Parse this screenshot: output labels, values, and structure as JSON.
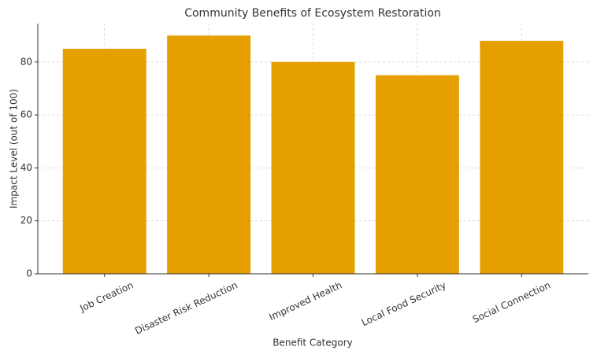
{
  "chart_data": {
    "type": "bar",
    "title": "Community Benefits of Ecosystem Restoration",
    "x_label": "Benefit Category",
    "y_label": "Impact Level (out of 100)",
    "categories": [
      "Job Creation",
      "Disaster Risk Reduction",
      "Improved Health",
      "Local Food Security",
      "Social Connection"
    ],
    "values": [
      85,
      90,
      80,
      75,
      88
    ],
    "color": "#e5a000",
    "ylim": [
      0,
      94.5
    ],
    "yticks": [
      0,
      20,
      40,
      60,
      80
    ],
    "grid": true
  }
}
